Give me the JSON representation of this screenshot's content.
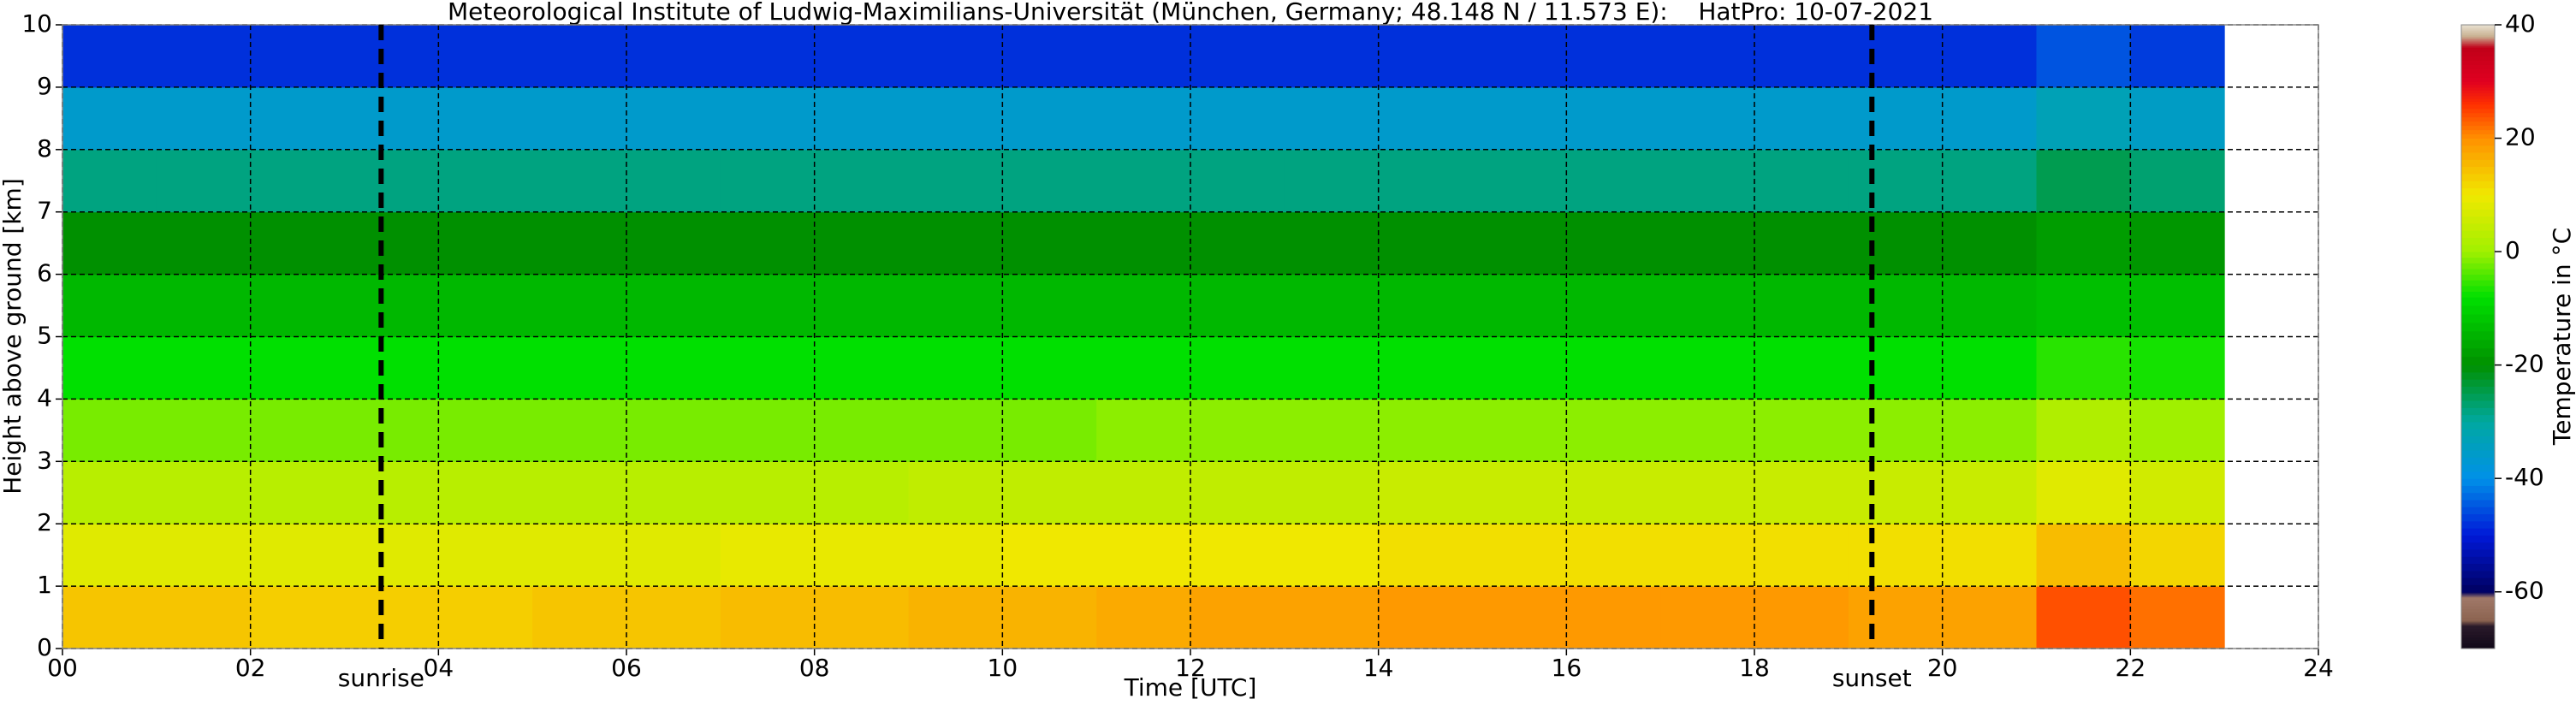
{
  "chart_data": {
    "type": "heatmap",
    "title": "Meteorological Institute of Ludwig-Maximilians-Universität (München, Germany; 48.148 N / 11.573 E):    HatPro: 10-07-2021",
    "x_label": "Time [UTC]",
    "y_label": "Height above ground [km]",
    "colorbar_label": "Temperature in °C",
    "x_edges": [
      0,
      1,
      2,
      3,
      4,
      5,
      6,
      7,
      8,
      9,
      10,
      11,
      12,
      13,
      14,
      15,
      16,
      17,
      18,
      19,
      20,
      21,
      22,
      23
    ],
    "y_edges": [
      0,
      1,
      2,
      3,
      4,
      5,
      6,
      7,
      8,
      9,
      10
    ],
    "z": [
      [
        14,
        14,
        13,
        13,
        13,
        14,
        14,
        15,
        15,
        16,
        16,
        17,
        18,
        18,
        19,
        19,
        19,
        19,
        19,
        18,
        18,
        24,
        22
      ],
      [
        8,
        8,
        8,
        8,
        8,
        8,
        8,
        9,
        9,
        9,
        10,
        10,
        10,
        10,
        11,
        11,
        11,
        11,
        11,
        11,
        11,
        15,
        12
      ],
      [
        3,
        3,
        3,
        3,
        3,
        3,
        3,
        3,
        3,
        4,
        4,
        4,
        4,
        4,
        5,
        5,
        5,
        5,
        5,
        5,
        5,
        8,
        6
      ],
      [
        -2,
        -2,
        -2,
        -2,
        -2,
        -2,
        -2,
        -2,
        -2,
        -2,
        -2,
        -1,
        -1,
        -1,
        -1,
        -1,
        -1,
        -1,
        -1,
        -1,
        -1,
        2,
        0
      ],
      [
        -8,
        -8,
        -8,
        -8,
        -8,
        -8,
        -8,
        -8,
        -8,
        -8,
        -8,
        -8,
        -8,
        -8,
        -8,
        -8,
        -8,
        -8,
        -8,
        -8,
        -8,
        -6,
        -7
      ],
      [
        -14,
        -14,
        -14,
        -14,
        -14,
        -14,
        -14,
        -14,
        -14,
        -14,
        -14,
        -14,
        -14,
        -14,
        -14,
        -14,
        -14,
        -14,
        -14,
        -14,
        -14,
        -13,
        -13
      ],
      [
        -20,
        -20,
        -20,
        -20,
        -20,
        -20,
        -20,
        -20,
        -20,
        -20,
        -20,
        -20,
        -20,
        -20,
        -20,
        -20,
        -20,
        -20,
        -20,
        -20,
        -20,
        -18,
        -19
      ],
      [
        -28,
        -28,
        -28,
        -28,
        -28,
        -28,
        -28,
        -28,
        -28,
        -28,
        -28,
        -28,
        -28,
        -28,
        -28,
        -28,
        -28,
        -28,
        -28,
        -28,
        -28,
        -25,
        -27
      ],
      [
        -36,
        -36,
        -36,
        -36,
        -36,
        -36,
        -36,
        -36,
        -36,
        -36,
        -36,
        -36,
        -36,
        -36,
        -36,
        -36,
        -36,
        -36,
        -36,
        -36,
        -36,
        -33,
        -35
      ],
      [
        -48,
        -48,
        -48,
        -48,
        -48,
        -48,
        -48,
        -48,
        -48,
        -48,
        -48,
        -48,
        -48,
        -48,
        -48,
        -48,
        -48,
        -48,
        -48,
        -48,
        -48,
        -45,
        -47
      ]
    ],
    "colorscale": [
      [
        -70,
        "#100818"
      ],
      [
        -66,
        "#2a1a2a"
      ],
      [
        -65,
        "#8c6450"
      ],
      [
        -61,
        "#a07868"
      ],
      [
        -60,
        "#000060"
      ],
      [
        -50,
        "#0018d8"
      ],
      [
        -40,
        "#0090e8"
      ],
      [
        -30,
        "#00a8a0"
      ],
      [
        -20,
        "#009000"
      ],
      [
        -8,
        "#00e000"
      ],
      [
        0,
        "#a0f000"
      ],
      [
        10,
        "#f0e800"
      ],
      [
        20,
        "#ff9000"
      ],
      [
        26,
        "#ff3000"
      ],
      [
        30,
        "#e00020"
      ],
      [
        36,
        "#c00018"
      ],
      [
        38,
        "#c8b090"
      ],
      [
        40,
        "#e8e0d0"
      ]
    ],
    "clim": [
      -70,
      40
    ],
    "cticks": [
      40,
      20,
      0,
      -20,
      -40,
      -60
    ],
    "xlim": [
      0,
      24
    ],
    "ylim": [
      0,
      10
    ],
    "xticks": [
      {
        "value": 0,
        "label": "00"
      },
      {
        "value": 2,
        "label": "02"
      },
      {
        "value": 4,
        "label": "04"
      },
      {
        "value": 6,
        "label": "06"
      },
      {
        "value": 8,
        "label": "08"
      },
      10,
      12,
      14,
      16,
      18,
      20,
      22,
      24
    ],
    "yticks": [
      0,
      1,
      2,
      3,
      4,
      5,
      6,
      7,
      8,
      9,
      10
    ],
    "grid": true,
    "vlines": [
      {
        "x": 3.39,
        "label": "sunrise"
      },
      {
        "x": 19.25,
        "label": "sunset"
      }
    ]
  }
}
